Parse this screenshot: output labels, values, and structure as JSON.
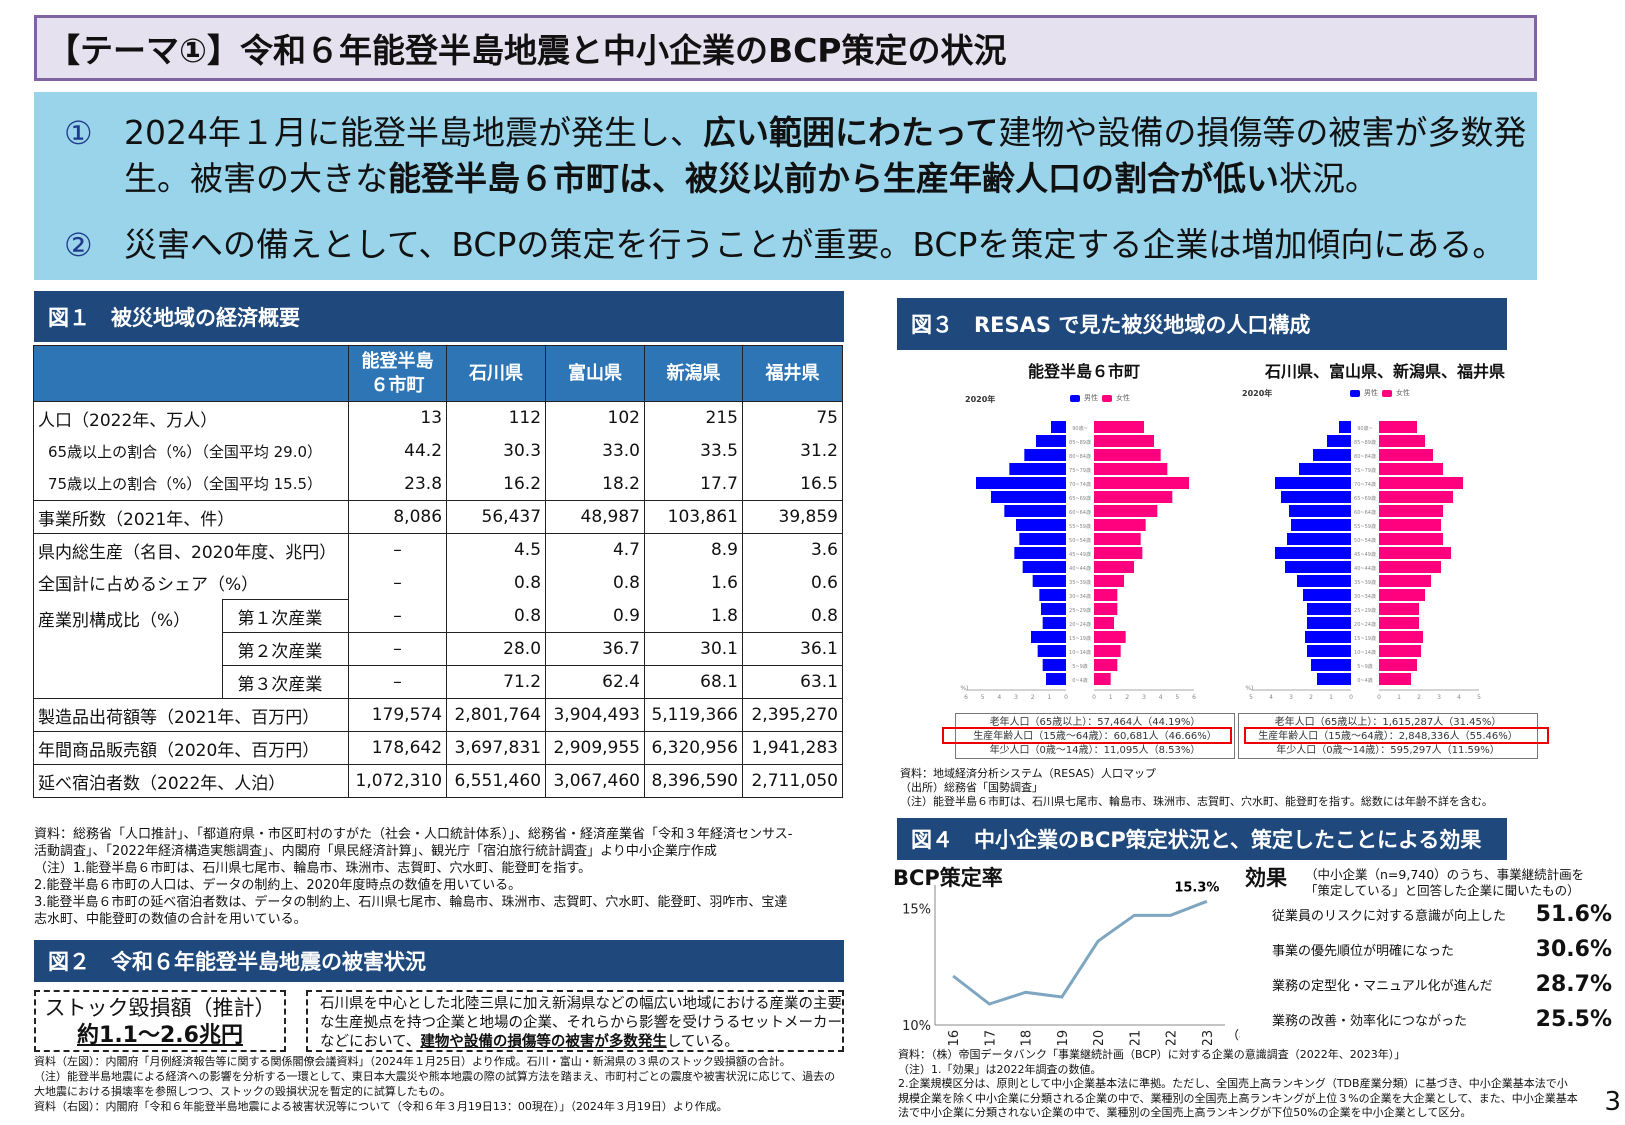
{
  "title": "【テーマ①】令和６年能登半島地震と中小企業のBCP策定の状況",
  "summary": [
    {
      "num": "①",
      "parts": [
        {
          "text": "2024年１月に能登半島地震が発生し、",
          "bold": false
        },
        {
          "text": "広い範囲にわたって",
          "bold": true
        },
        {
          "text": "建物や設備の損傷等の被害が多数発生。被害の大きな",
          "bold": false
        },
        {
          "text": "能登半島６市町は、被災以前から生産年齢人口の割合が低い",
          "bold": true
        },
        {
          "text": "状況。",
          "bold": false
        }
      ]
    },
    {
      "num": "②",
      "parts": [
        {
          "text": "災害への備えとして、BCPの策定を行うことが重要。BCPを策定する企業は増加傾向にある。",
          "bold": false
        }
      ]
    }
  ],
  "fig1": {
    "header": "図１　被災地域の経済概要",
    "columns": [
      "能登半島\n６市町",
      "石川県",
      "富山県",
      "新潟県",
      "福井県"
    ],
    "col1_line1": "能登半島",
    "col1_line2": "６市町",
    "rows": [
      {
        "label": "人口（2022年、万人）",
        "values": [
          "13",
          "112",
          "102",
          "215",
          "75"
        ]
      },
      {
        "label": "65歳以上の割合（%）（全国平均 29.0）",
        "values": [
          "44.2",
          "30.3",
          "33.0",
          "33.5",
          "31.2"
        ]
      },
      {
        "label": "75歳以上の割合（%）（全国平均 15.5）",
        "values": [
          "23.8",
          "16.2",
          "18.2",
          "17.7",
          "16.5"
        ]
      },
      {
        "label": "事業所数（2021年、件）",
        "values": [
          "8,086",
          "56,437",
          "48,987",
          "103,861",
          "39,859"
        ]
      },
      {
        "label": "県内総生産（名目、2020年度、兆円）",
        "values": [
          "–",
          "4.5",
          "4.7",
          "8.9",
          "3.6"
        ]
      },
      {
        "label": "全国計に占めるシェア（%）",
        "values": [
          "–",
          "0.8",
          "0.8",
          "1.6",
          "0.6"
        ]
      },
      {
        "label": "産業別構成比（%）",
        "sublabel": "第１次産業",
        "values": [
          "–",
          "0.8",
          "0.9",
          "1.8",
          "0.8"
        ]
      },
      {
        "label": "",
        "sublabel": "第２次産業",
        "values": [
          "–",
          "28.0",
          "36.7",
          "30.1",
          "36.1"
        ]
      },
      {
        "label": "",
        "sublabel": "第３次産業",
        "values": [
          "–",
          "71.2",
          "62.4",
          "68.1",
          "63.1"
        ]
      },
      {
        "label": "製造品出荷額等（2021年、百万円）",
        "values": [
          "179,574",
          "2,801,764",
          "3,904,493",
          "5,119,366",
          "2,395,270"
        ]
      },
      {
        "label": "年間商品販売額（2020年、百万円）",
        "values": [
          "178,642",
          "3,697,831",
          "2,909,955",
          "6,320,956",
          "1,941,283"
        ]
      },
      {
        "label": "延べ宿泊者数（2022年、人泊）",
        "values": [
          "1,072,310",
          "6,551,460",
          "3,067,460",
          "8,396,590",
          "2,711,050"
        ]
      }
    ],
    "notes": [
      "資料：総務省「人口推計」、「都道府県・市区町村のすがた（社会・人口統計体系）」、総務省・経済産業省「令和３年経済センサス-",
      "活動調査」、「2022年経済構造実態調査」、内閣府「県民経済計算」、観光庁「宿泊旅行統計調査」より中小企業庁作成",
      "（注）1.能登半島６市町は、石川県七尾市、輪島市、珠洲市、志賀町、穴水町、能登町を指す。",
      "2.能登半島６市町の人口は、データの制約上、2020年度時点の数値を用いている。",
      "3.能登半島６市町の延べ宿泊者数は、データの制約上、石川県七尾市、輪島市、珠洲市、志賀町、穴水町、能登町、羽咋市、宝達",
      "志水町、中能登町の数値の合計を用いている。"
    ]
  },
  "fig2": {
    "header": "図２　令和６年能登半島地震の被害状況",
    "left_line1": "ストック毀損額（推計）",
    "left_line2": "約1.1～2.6兆円",
    "right_text_plain": "石川県を中心とした北陸三県に加え新潟県などの幅広い地域における産業の主要な生産拠点を持つ企業と地場の企業、それらから影響を受けうるセットメーカーなどにおいて、",
    "right_text_bold": "建物や設備の損傷等の被害が多数発生",
    "right_text_end": "している。",
    "notes": [
      "資料（左図）：内閣府「月例経済報告等に関する関係閣僚会議資料」（2024年１月25日）より作成。石川・富山・新潟県の３県のストック毀損額の合計。",
      "（注）能登半島地震による経済への影響を分析する一環として、東日本大震災や熊本地震の際の試算方法を踏まえ、市町村ごとの震度や被害状況に応じて、過去の",
      "大地震における損壊率を参照しつつ、ストックの毀損状況を暫定的に試算したもの。",
      "資料（右図）：内閣府「令和６年能登半島地震による被害状況等について（令和６年３月19日13：00現在）」（2024年３月19日）より作成。"
    ]
  },
  "fig3": {
    "header": "図３　RESAS で見た被災地域の人口構成",
    "left_title": "能登半島６市町",
    "right_title": "石川県、富山県、新潟県、福井県",
    "year": "2020年",
    "legend_male": "男性",
    "legend_female": "女性",
    "colors": {
      "male": "#0000ff",
      "female": "#ff007f"
    },
    "left_box": [
      "老年人口（65歳以上）：57,464人（44.19%）",
      "生産年齢人口（15歳～64歳）：60,681人（46.66%）",
      "年少人口（0歳～14歳）：11,095人（8.53%）"
    ],
    "right_box": [
      "老年人口（65歳以上）：1,615,287人（31.45%）",
      "生産年齢人口（15歳～64歳）：2,848,336人（55.46%）",
      "年少人口（0歳～14歳）：595,297人（11.59%）"
    ],
    "notes": [
      "資料：地域経済分析システム（RESAS）人口マップ",
      "（出所）総務省「国勢調査」",
      "（注）能登半島６市町は、石川県七尾市、輪島市、珠洲市、志賀町、穴水町、能登町を指す。総数には年齢不詳を含む。"
    ]
  },
  "fig4": {
    "header": "図４　中小企業のBCP策定状況と、策定したことによる効果",
    "bcp_title": "BCP策定率",
    "peak_label": "15.3%",
    "y_ticks": [
      "15%",
      "10%"
    ],
    "x_unit": "（年）",
    "effect_title": "効果",
    "effect_sub1": "（中小企業（n=9,740）のうち、事業継続計画を",
    "effect_sub2": "「策定している」と回答した企業に聞いたもの）",
    "effects": [
      {
        "label": "従業員のリスクに対する意識が向上した",
        "value": "51.6%"
      },
      {
        "label": "事業の優先順位が明確になった",
        "value": "30.6%"
      },
      {
        "label": "業務の定型化・マニュアル化が進んだ",
        "value": "28.7%"
      },
      {
        "label": "業務の改善・効率化につながった",
        "value": "25.5%"
      }
    ],
    "notes": [
      "資料：（株）帝国データバンク「事業継続計画（BCP）に対する企業の意識調査（2022年、2023年）」",
      "（注）1.「効果」は2022年調査の数値。",
      "2.企業規模区分は、原則として中小企業基本法に準拠。ただし、全国売上高ランキング（TDB産業分類）に基づき、中小企業基本法で小",
      "規模企業を除く中小企業に分類される企業の中で、業種別の全国売上高ランキングが上位３%の企業を大企業として、また、中小企業基本",
      "法で中小企業に分類されない企業の中で、業種別の全国売上高ランキングが下位50%の企業を中小企業として区分。"
    ]
  },
  "page_number": "3",
  "chart_data": [
    {
      "type": "bar",
      "title": "能登半島６市町 人口ピラミッド（2020年）",
      "xlabel": "(%)",
      "categories": [
        "0~4歳",
        "5~9歳",
        "10~14歳",
        "15~19歳",
        "20~24歳",
        "25~29歳",
        "30~34歳",
        "35~39歳",
        "40~44歳",
        "45~49歳",
        "50~54歳",
        "55~59歳",
        "60~64歳",
        "65~69歳",
        "70~74歳",
        "75~79歳",
        "80~84歳",
        "85~89歳",
        "90歳~"
      ],
      "series": [
        {
          "name": "男性",
          "values": [
            1.2,
            1.4,
            1.7,
            2.1,
            1.4,
            1.5,
            1.6,
            2.0,
            2.6,
            3.1,
            2.8,
            3.0,
            3.7,
            4.5,
            5.4,
            3.4,
            2.5,
            1.8,
            0.9
          ]
        },
        {
          "name": "女性",
          "values": [
            1.0,
            1.4,
            1.6,
            1.9,
            1.2,
            1.4,
            1.4,
            1.8,
            2.4,
            2.9,
            2.8,
            3.1,
            3.8,
            4.7,
            5.7,
            4.4,
            4.0,
            3.6,
            3.0
          ]
        }
      ],
      "xlim": [
        6,
        6
      ]
    },
    {
      "type": "bar",
      "title": "石川県、富山県、新潟県、福井県 人口ピラミッド（2020年）",
      "xlabel": "(%)",
      "categories": [
        "0~4歳",
        "5~9歳",
        "10~14歳",
        "15~19歳",
        "20~24歳",
        "25~29歳",
        "30~34歳",
        "35~39歳",
        "40~44歳",
        "45~49歳",
        "50~54歳",
        "55~59歳",
        "60~64歳",
        "65~69歳",
        "70~74歳",
        "75~79歳",
        "80~84歳",
        "85~89歳",
        "90歳~"
      ],
      "series": [
        {
          "name": "男性",
          "values": [
            1.7,
            2.0,
            2.2,
            2.3,
            2.2,
            2.2,
            2.4,
            2.7,
            3.3,
            3.8,
            3.2,
            3.0,
            3.1,
            3.5,
            3.8,
            2.6,
            1.9,
            1.2,
            0.6
          ]
        },
        {
          "name": "女性",
          "values": [
            1.6,
            1.9,
            2.1,
            2.2,
            2.0,
            2.0,
            2.3,
            2.6,
            3.1,
            3.6,
            3.2,
            3.1,
            3.2,
            3.7,
            4.2,
            3.2,
            2.7,
            2.3,
            1.9
          ]
        }
      ],
      "xlim": [
        5,
        5
      ]
    },
    {
      "type": "line",
      "title": "BCP策定率",
      "x": [
        "2016",
        "2017",
        "2018",
        "2019",
        "2020",
        "2021",
        "2022",
        "2023"
      ],
      "values": [
        12.1,
        10.9,
        11.4,
        11.2,
        13.6,
        14.7,
        14.7,
        15.3
      ],
      "ylabel": "",
      "xlabel": "（年）",
      "ylim": [
        10,
        16
      ],
      "annotations": [
        "15.3%"
      ],
      "color": "#7fa6c0"
    },
    {
      "type": "table",
      "title": "効果",
      "categories": [
        "従業員のリスクに対する意識が向上した",
        "事業の優先順位が明確になった",
        "業務の定型化・マニュアル化が進んだ",
        "業務の改善・効率化につながった"
      ],
      "values": [
        51.6,
        30.6,
        28.7,
        25.5
      ]
    }
  ]
}
